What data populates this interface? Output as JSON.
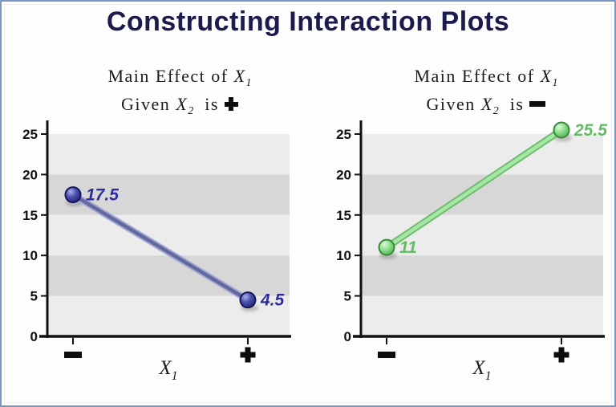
{
  "page": {
    "title": "Constructing Interaction Plots",
    "title_color": "#1b1b4d",
    "border_color": "#7b96c4",
    "background": "#fdfdfd"
  },
  "chart_data": [
    {
      "type": "line",
      "title": {
        "line1_text": "Main Effect of",
        "var1": "X",
        "sub1": "1",
        "line2_text": "Given",
        "var2": "X",
        "sub2": "2",
        "is_text": "is",
        "symbol": "plus"
      },
      "x_categories": [
        "minus",
        "plus"
      ],
      "x_axis_label": {
        "var": "X",
        "sub": "1"
      },
      "y_ticks": [
        0,
        5,
        10,
        15,
        20,
        25
      ],
      "ylim": [
        0,
        27
      ],
      "values": [
        17.5,
        4.5
      ],
      "point_labels": [
        "17.5",
        "4.5"
      ],
      "grid": "horizontal-bands",
      "legend": "none",
      "band_colors": [
        "#ececec",
        "#d7d7d7"
      ],
      "colors": {
        "axis": "#111111",
        "tick_label": "#111111",
        "line_core": "#63689f",
        "line_halo": "#a5aad6",
        "marker_center": "#a9b1ec",
        "marker_mid": "#4a50ae",
        "marker_edge": "#202275",
        "marker_stroke": "#15155a",
        "label": "#2c2c9e"
      }
    },
    {
      "type": "line",
      "title": {
        "line1_text": "Main Effect of",
        "var1": "X",
        "sub1": "1",
        "line2_text": "Given",
        "var2": "X",
        "sub2": "2",
        "is_text": "is",
        "symbol": "minus"
      },
      "x_categories": [
        "minus",
        "plus"
      ],
      "x_axis_label": {
        "var": "X",
        "sub": "1"
      },
      "y_ticks": [
        0,
        5,
        10,
        15,
        20,
        25
      ],
      "ylim": [
        0,
        27
      ],
      "values": [
        11,
        25.5
      ],
      "point_labels": [
        "11",
        "25.5"
      ],
      "grid": "horizontal-bands",
      "legend": "none",
      "band_colors": [
        "#ececec",
        "#d7d7d7"
      ],
      "colors": {
        "axis": "#111111",
        "tick_label": "#111111",
        "line_core": "#a5e8a5",
        "line_halo": "#6dbd6d",
        "marker_center": "#e2fadb",
        "marker_mid": "#90e090",
        "marker_edge": "#4fae4f",
        "marker_stroke": "#3b8a3b",
        "label": "#63bb63"
      }
    }
  ]
}
